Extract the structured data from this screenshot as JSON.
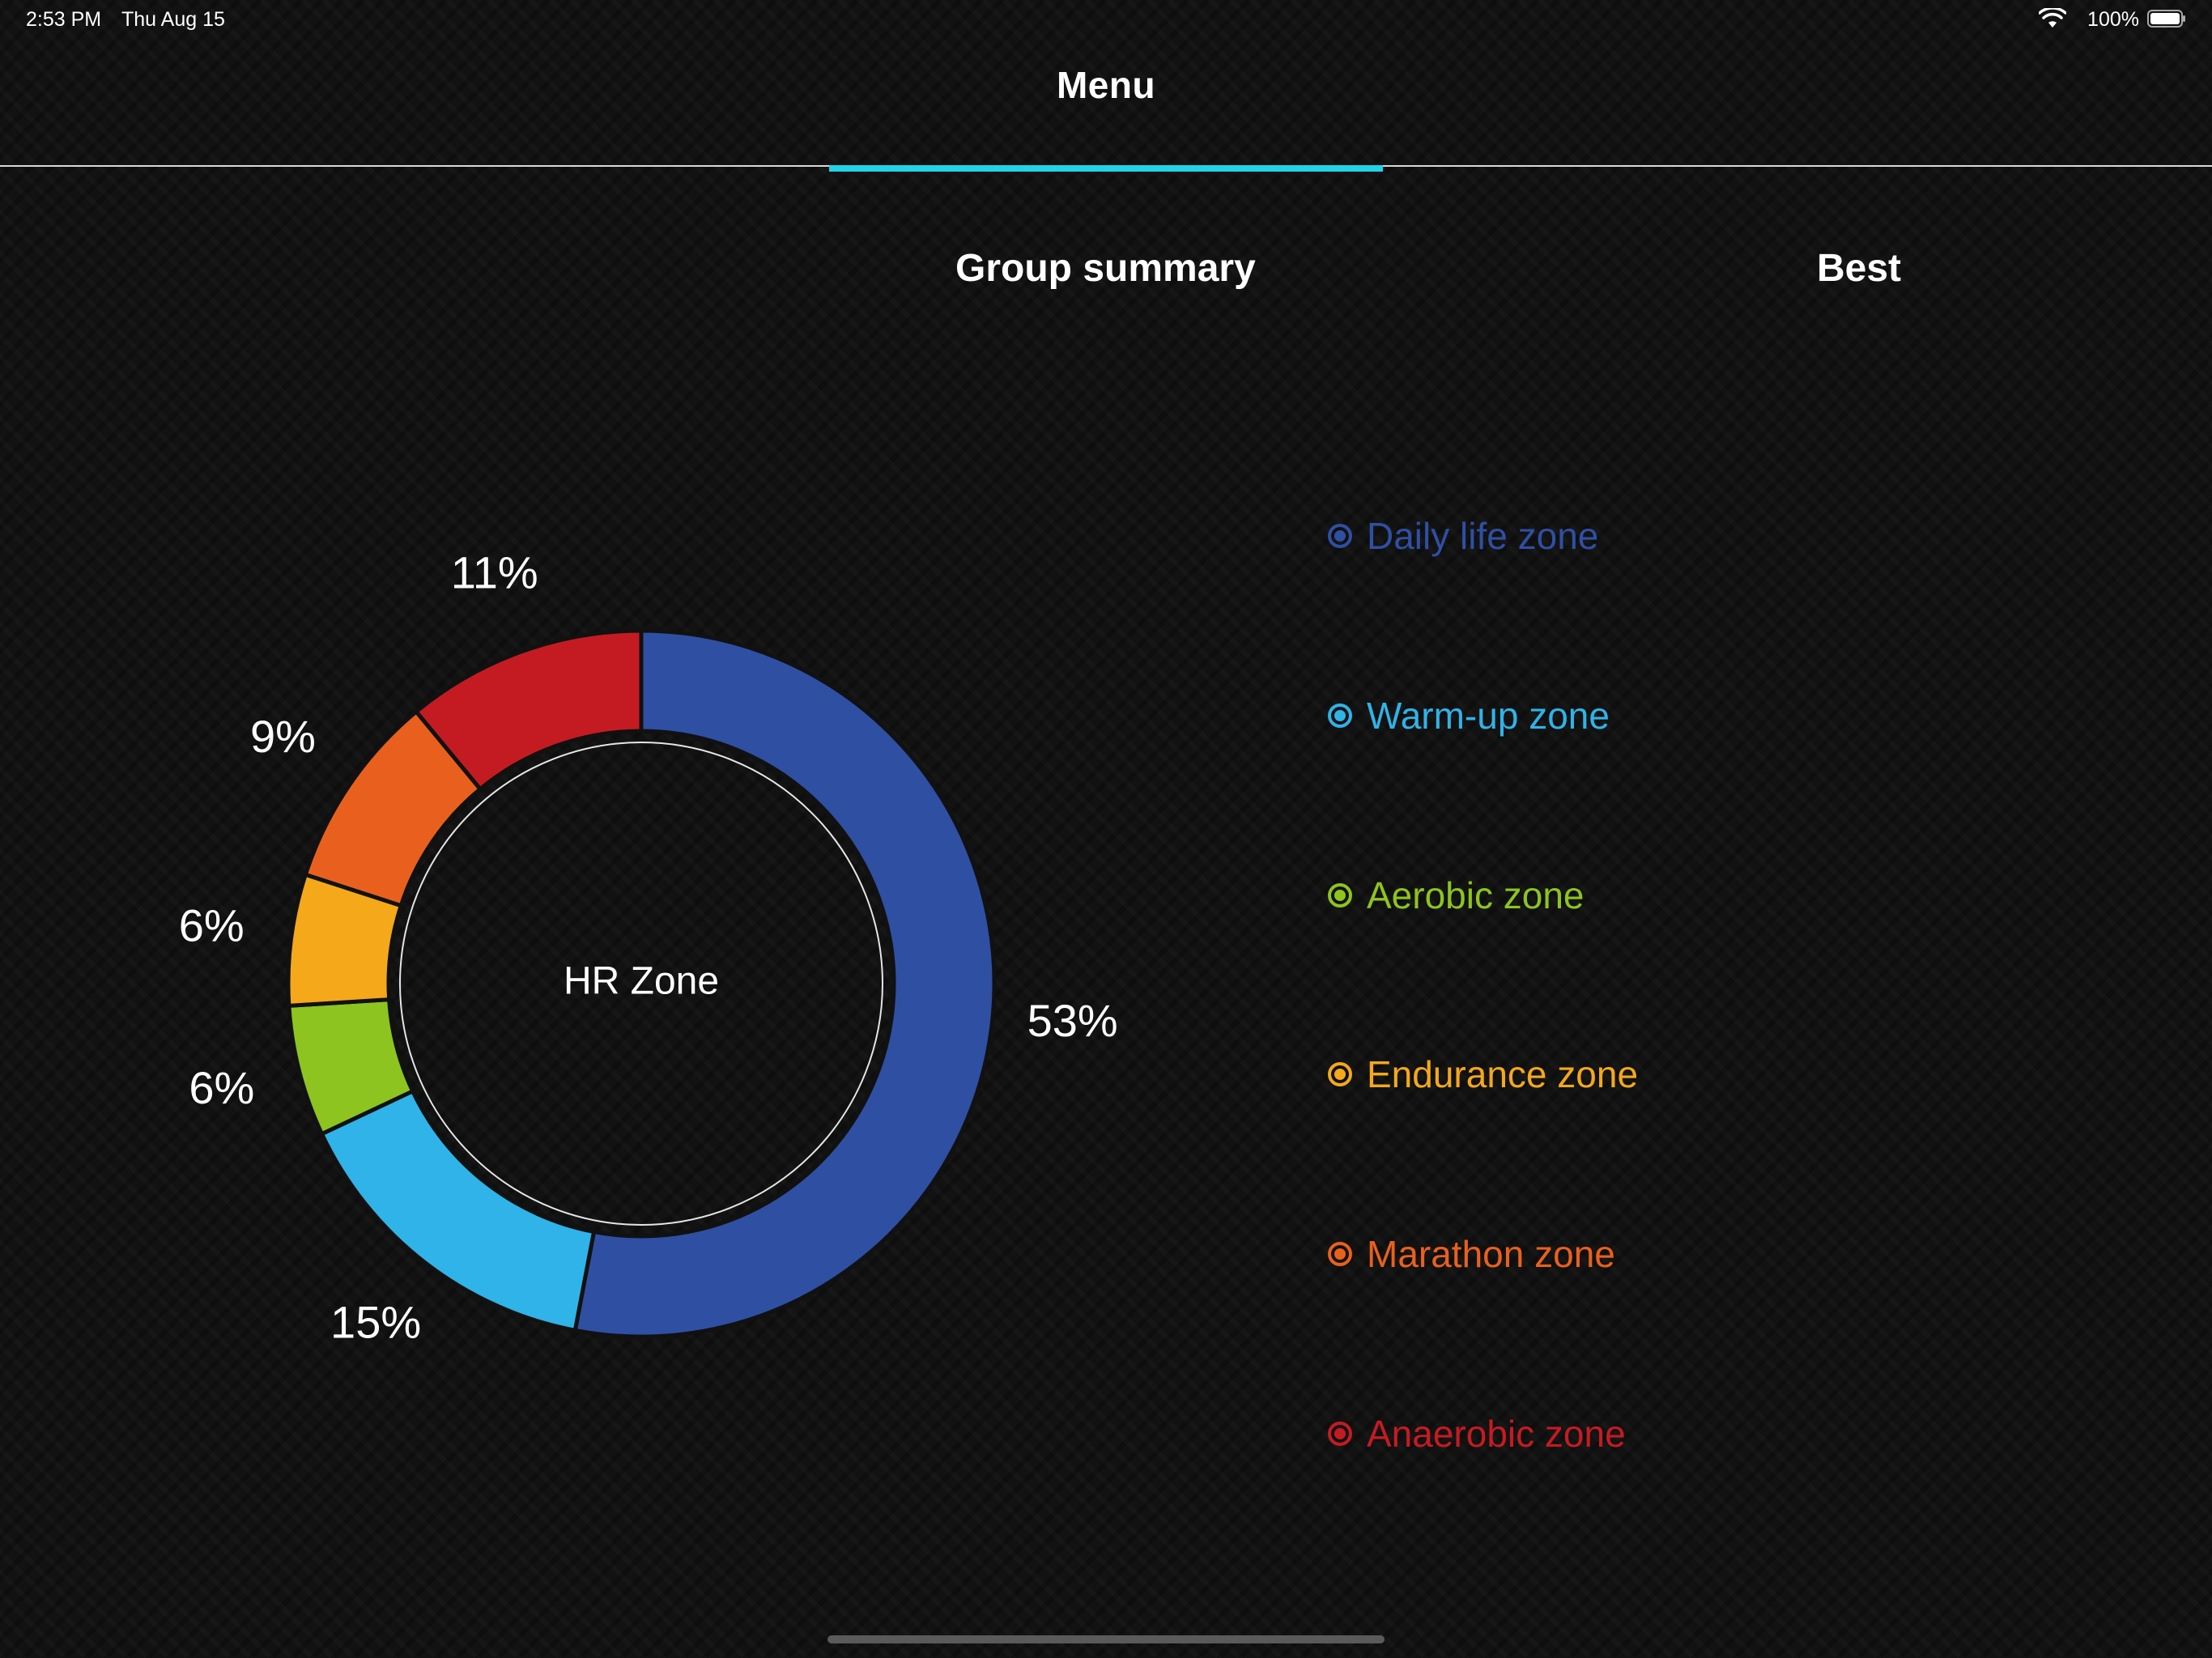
{
  "status_bar": {
    "time": "2:53 PM",
    "date": "Thu Aug 15",
    "battery": "100%"
  },
  "nav": {
    "title": "Menu"
  },
  "tabs": {
    "group_summary": "Group summary",
    "best": "Best"
  },
  "chart_data": {
    "type": "pie",
    "center_label": "HR Zone",
    "categories": [
      "Daily life zone",
      "Warm-up zone",
      "Aerobic zone",
      "Endurance zone",
      "Marathon zone",
      "Anaerobic zone"
    ],
    "values": [
      53,
      15,
      6,
      6,
      9,
      11
    ],
    "value_labels": [
      "53%",
      "15%",
      "6%",
      "6%",
      "9%",
      "11%"
    ],
    "colors": [
      "#2f4fa3",
      "#2fb3e8",
      "#8dc41f",
      "#f4a81a",
      "#e9601e",
      "#c41b22"
    ]
  },
  "legend": {
    "items": [
      {
        "label": "Daily life zone",
        "color": "#2f4fa3"
      },
      {
        "label": "Warm-up zone",
        "color": "#2fb3e8"
      },
      {
        "label": "Aerobic zone",
        "color": "#8dc41f"
      },
      {
        "label": "Endurance zone",
        "color": "#f4a81a"
      },
      {
        "label": "Marathon zone",
        "color": "#e9601e"
      },
      {
        "label": "Anaerobic zone",
        "color": "#c41b22"
      }
    ]
  }
}
